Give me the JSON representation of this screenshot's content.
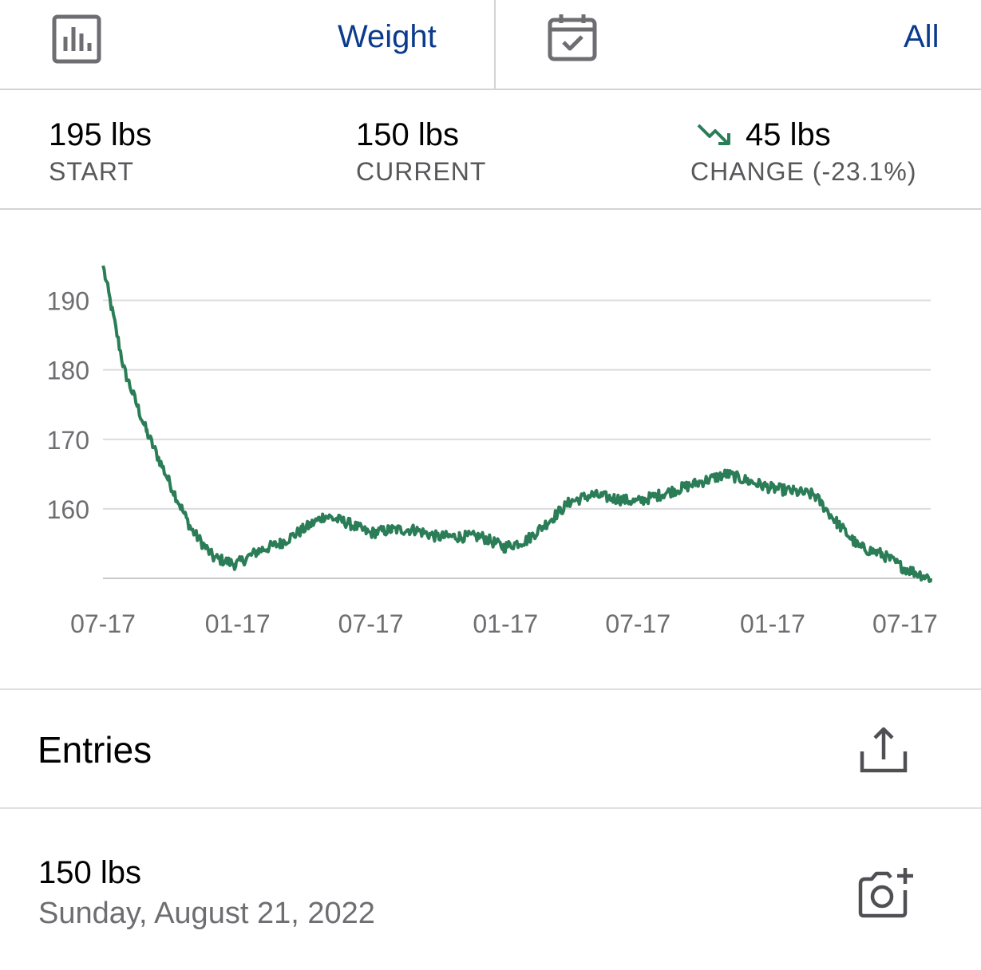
{
  "toolbar": {
    "chart_icon": "bar-chart-icon",
    "metric_label": "Weight",
    "calendar_icon": "calendar-check-icon",
    "range_label": "All"
  },
  "stats": {
    "start_value": "195 lbs",
    "start_caption": "START",
    "current_value": "150 lbs",
    "current_caption": "CURRENT",
    "change_icon": "trend-down-icon",
    "change_value": "45 lbs",
    "change_caption": "CHANGE (-23.1%)",
    "trend_color": "#2a7d56"
  },
  "chart_data": {
    "type": "line",
    "x_tick_labels": [
      "07-17",
      "01-17",
      "07-17",
      "01-17",
      "07-17",
      "01-17",
      "07-17"
    ],
    "y_tick_labels": [
      "190",
      "180",
      "170",
      "160"
    ],
    "ylim": [
      150,
      195
    ],
    "grid": true,
    "series": [
      {
        "color": "#2a7d56",
        "x": [
          "2019-07-17",
          "2019-08-15",
          "2019-09-15",
          "2019-10-15",
          "2019-11-15",
          "2019-12-15",
          "2020-01-15",
          "2020-02-15",
          "2020-03-15",
          "2020-04-15",
          "2020-05-15",
          "2020-06-15",
          "2020-07-15",
          "2020-08-15",
          "2020-09-15",
          "2020-10-15",
          "2020-11-15",
          "2020-12-15",
          "2021-01-15",
          "2021-02-15",
          "2021-03-15",
          "2021-04-15",
          "2021-05-15",
          "2021-06-15",
          "2021-07-15",
          "2021-08-15",
          "2021-09-15",
          "2021-10-15",
          "2021-11-15",
          "2021-12-15",
          "2022-01-15",
          "2022-02-15",
          "2022-03-15",
          "2022-04-15",
          "2022-05-15",
          "2022-06-15",
          "2022-07-15",
          "2022-08-21"
        ],
        "y": [
          195,
          180,
          171,
          164,
          157,
          153,
          152,
          154,
          155,
          157,
          159,
          158,
          156.5,
          157,
          157,
          156,
          156,
          156,
          154.5,
          155.5,
          158,
          161,
          162,
          161.5,
          161,
          162,
          163,
          164,
          165,
          164,
          163,
          162.5,
          162,
          158,
          154.5,
          153.5,
          151.5,
          150
        ]
      }
    ]
  },
  "entries": {
    "title": "Entries",
    "share_icon": "share-icon",
    "items": [
      {
        "value": "150 lbs",
        "date": "Sunday, August 21, 2022",
        "photo_icon": "add-photo-icon"
      }
    ]
  }
}
